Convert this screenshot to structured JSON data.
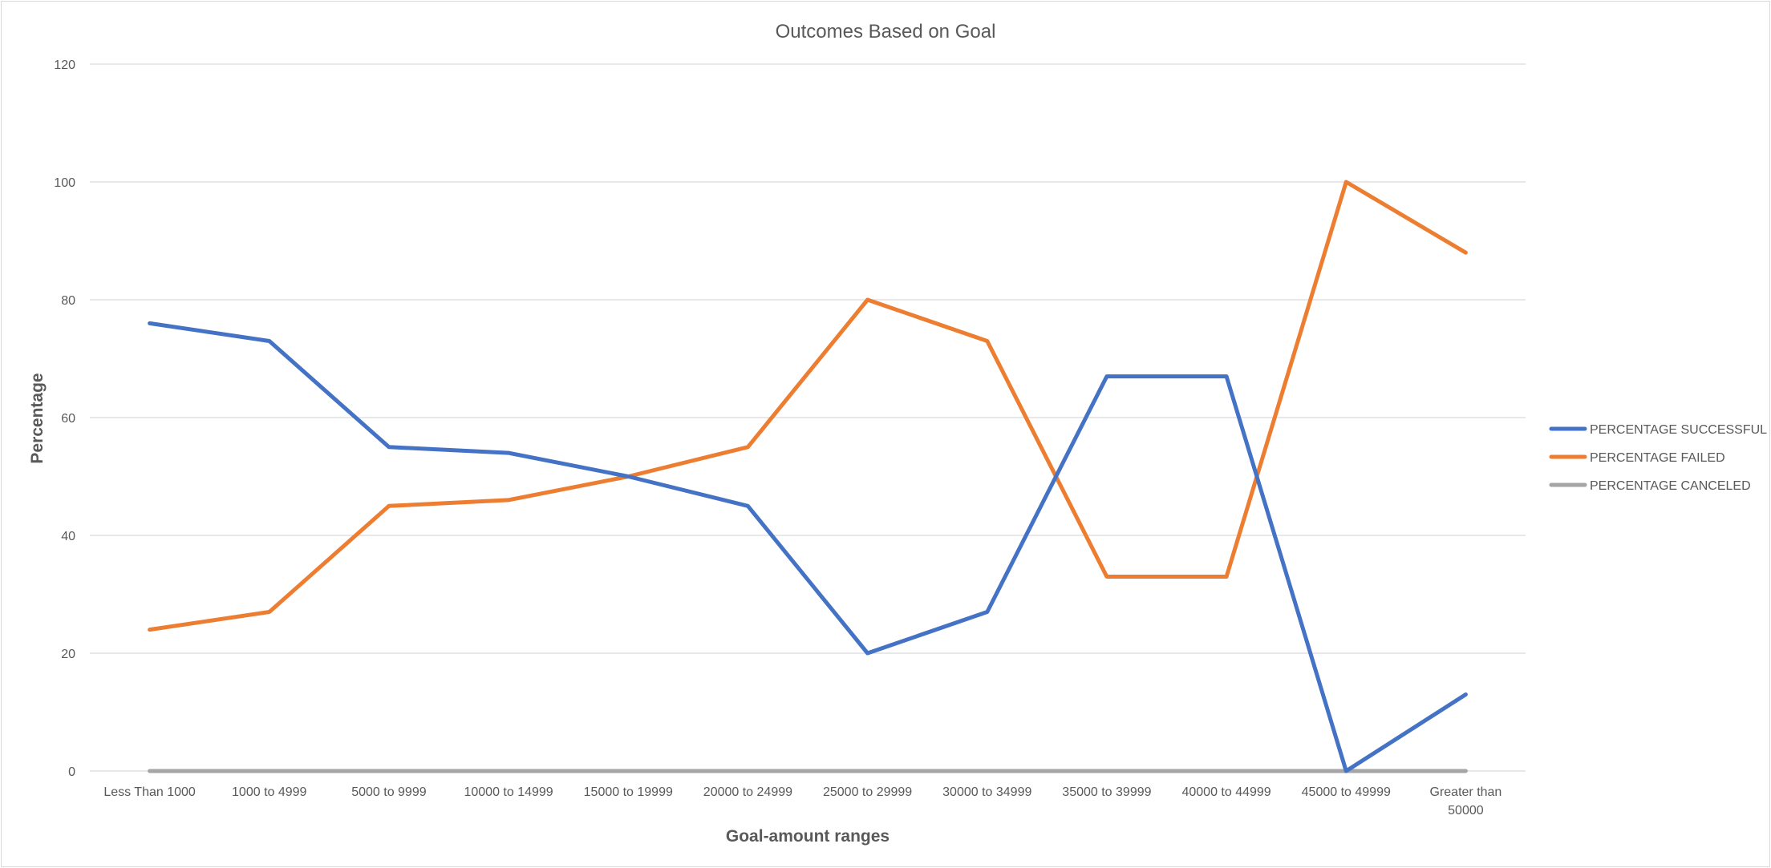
{
  "chart_data": {
    "type": "line",
    "title": "Outcomes Based on Goal",
    "xlabel": "Goal-amount ranges",
    "ylabel": "Percentage",
    "categories": [
      [
        "Less Than 1000"
      ],
      [
        "1000 to 4999"
      ],
      [
        "5000 to 9999"
      ],
      [
        "10000 to 14999"
      ],
      [
        "15000 to 19999"
      ],
      [
        "20000 to 24999"
      ],
      [
        "25000 to 29999"
      ],
      [
        "30000 to 34999"
      ],
      [
        "35000 to 39999"
      ],
      [
        "40000 to 44999"
      ],
      [
        "45000 to 49999"
      ],
      [
        "Greater than",
        "50000"
      ]
    ],
    "ylim": [
      0,
      120
    ],
    "yticks": [
      0,
      20,
      40,
      60,
      80,
      100,
      120
    ],
    "grid": true,
    "legend_position": "right",
    "series": [
      {
        "name": "PERCENTAGE SUCCESSFUL",
        "color": "#4472c4",
        "values": [
          76,
          73,
          55,
          54,
          50,
          45,
          20,
          27,
          67,
          67,
          0,
          13
        ]
      },
      {
        "name": "PERCENTAGE FAILED",
        "color": "#ed7d31",
        "values": [
          24,
          27,
          45,
          46,
          50,
          55,
          80,
          73,
          33,
          33,
          100,
          88
        ]
      },
      {
        "name": "PERCENTAGE CANCELED",
        "color": "#a5a5a5",
        "values": [
          0,
          0,
          0,
          0,
          0,
          0,
          0,
          0,
          0,
          0,
          0,
          0
        ]
      }
    ]
  }
}
